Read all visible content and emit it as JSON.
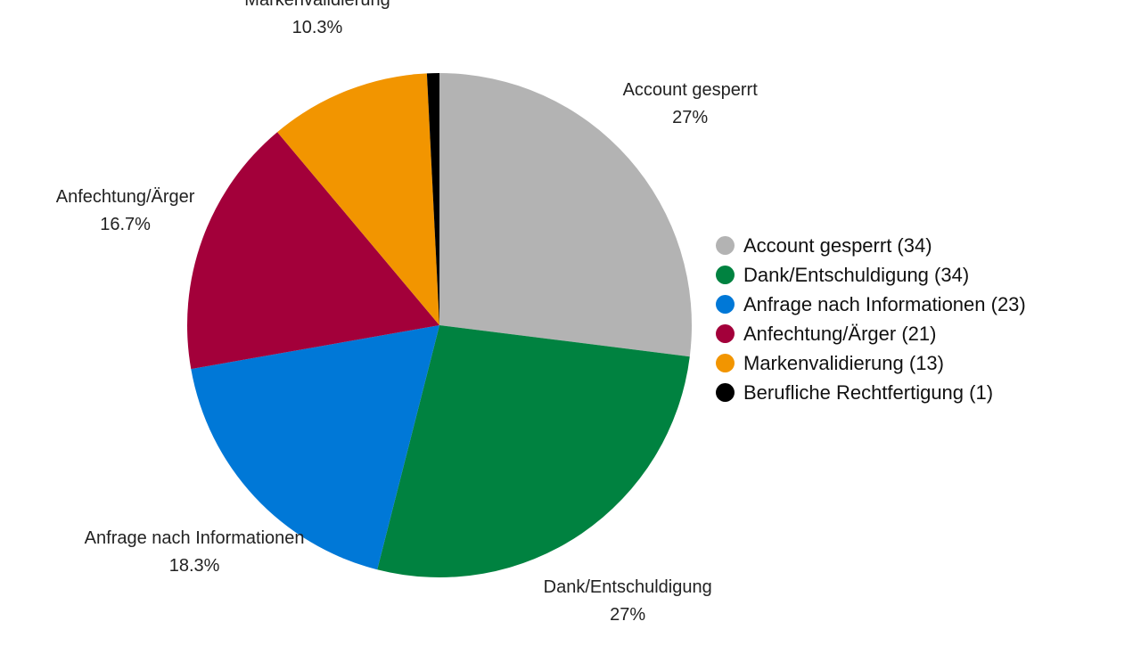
{
  "chart_data": {
    "type": "pie",
    "title": "",
    "slices": [
      {
        "name": "Account gesperrt",
        "count": 34,
        "percent_label": "27%",
        "color": "#b3b3b3"
      },
      {
        "name": "Dank/Entschuldigung",
        "count": 34,
        "percent_label": "27%",
        "color": "#008240"
      },
      {
        "name": "Anfrage nach Informationen",
        "count": 23,
        "percent_label": "18.3%",
        "color": "#0078d7"
      },
      {
        "name": "Anfechtung/Ärger",
        "count": 21,
        "percent_label": "16.7%",
        "color": "#a3003a"
      },
      {
        "name": "Markenvalidierung",
        "count": 13,
        "percent_label": "10.3%",
        "color": "#f29500"
      },
      {
        "name": "Berufliche Rechtfertigung",
        "count": 1,
        "percent_label": "",
        "color": "#000000"
      }
    ],
    "legend_labels": [
      "Account gesperrt (34)",
      "Dank/Entschuldigung (34)",
      "Anfrage nach Informationen (23)",
      "Anfechtung/Ärger (21)",
      "Markenvalidierung (13)",
      "Berufliche Rechtfertigung (1)"
    ],
    "legend_position": "right",
    "start": "top, clockwise"
  }
}
